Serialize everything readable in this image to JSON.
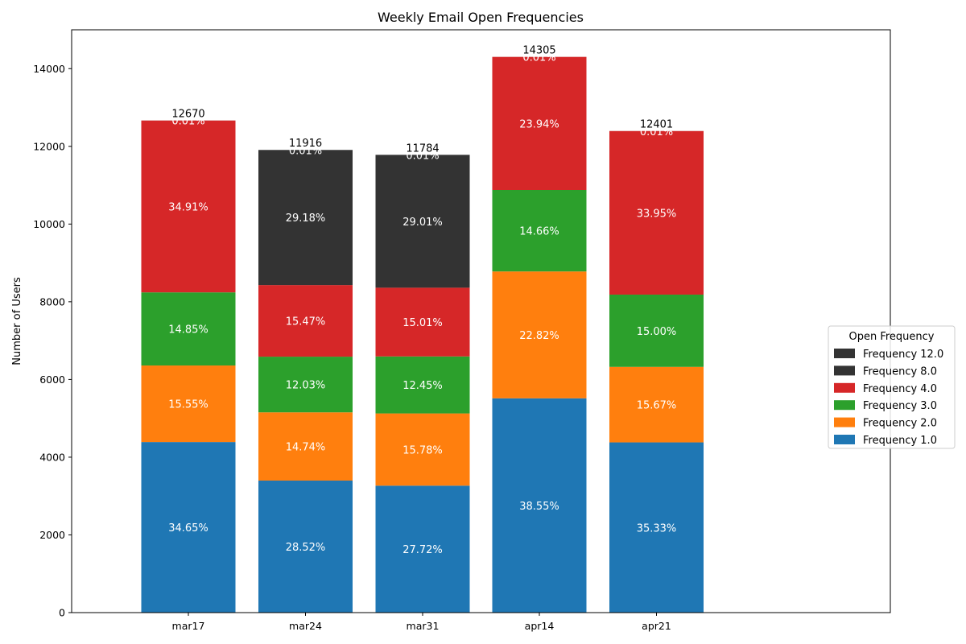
{
  "chart_data": {
    "type": "bar",
    "stacked": true,
    "title": "Weekly Email Open Frequencies",
    "xlabel": "",
    "ylabel": "Number of Users",
    "ylim": [
      0,
      15000
    ],
    "yticks": [
      0,
      2000,
      4000,
      6000,
      8000,
      10000,
      12000,
      14000
    ],
    "categories": [
      "mar17",
      "mar24",
      "mar31",
      "apr14",
      "apr21"
    ],
    "totals": [
      12670,
      11916,
      11784,
      14305,
      12401
    ],
    "series": [
      {
        "name": "Frequency 1.0",
        "color": "#1f77b4",
        "values": [
          4390,
          3398,
          3267,
          5515,
          4381
        ],
        "labels": [
          "34.65%",
          "28.52%",
          "27.72%",
          "38.55%",
          "35.33%"
        ]
      },
      {
        "name": "Frequency 2.0",
        "color": "#ff7f0e",
        "values": [
          1970,
          1756,
          1859,
          3265,
          1943
        ],
        "labels": [
          "15.55%",
          "14.74%",
          "15.78%",
          "22.82%",
          "15.67%"
        ]
      },
      {
        "name": "Frequency 3.0",
        "color": "#2ca02c",
        "values": [
          1882,
          1433,
          1467,
          2097,
          1860
        ],
        "labels": [
          "14.85%",
          "12.03%",
          "12.45%",
          "14.66%",
          "15.00%"
        ]
      },
      {
        "name": "Frequency 4.0",
        "color": "#d62728",
        "values": [
          4423,
          1843,
          1769,
          3425,
          4210
        ],
        "labels": [
          "34.91%",
          "15.47%",
          "15.01%",
          "23.94%",
          "33.95%"
        ]
      },
      {
        "name": "Frequency 8.0",
        "color": "#333333",
        "values": [
          0,
          3477,
          3419,
          0,
          0
        ],
        "labels": [
          "",
          "29.18%",
          "29.01%",
          "",
          ""
        ]
      },
      {
        "name": "Frequency 12.0",
        "color": "#333333",
        "values": [
          1,
          1,
          1,
          1,
          1
        ],
        "labels": [
          "0.01%",
          "0.01%",
          "0.01%",
          "0.01%",
          "0.01%"
        ]
      }
    ],
    "legend": {
      "title": "Open Frequency",
      "placement": "right",
      "order": [
        5,
        4,
        3,
        2,
        1,
        0
      ]
    },
    "grid": false
  }
}
